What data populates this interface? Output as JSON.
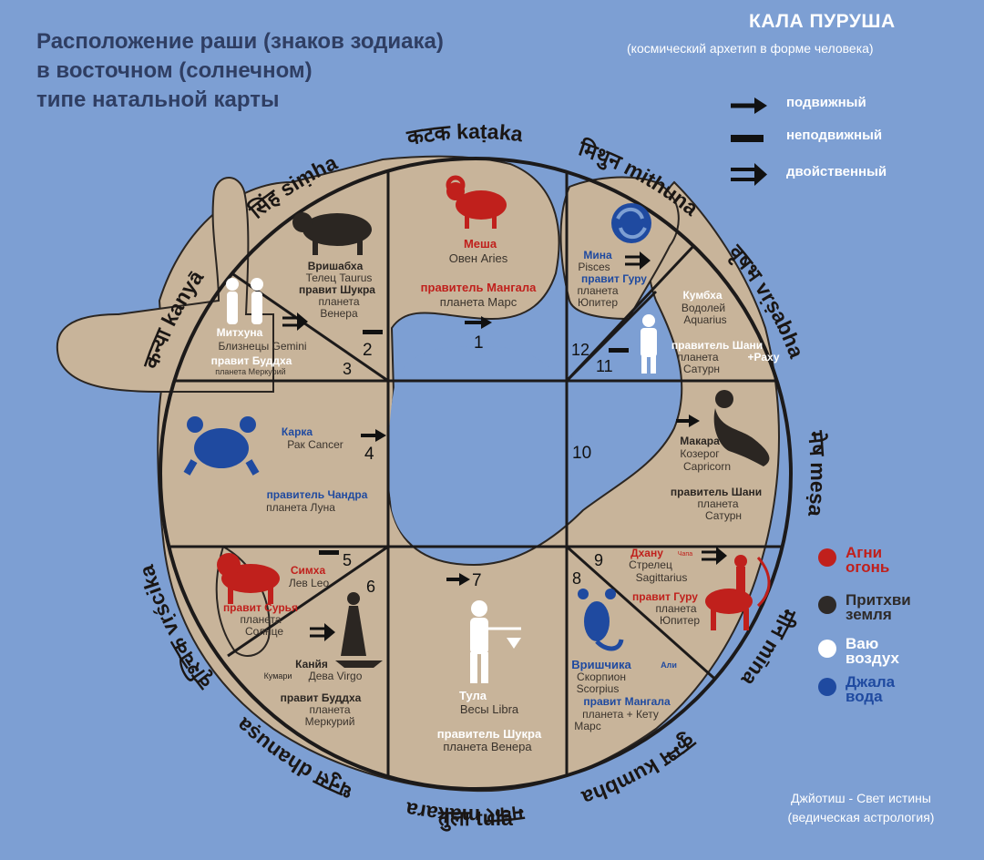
{
  "title": {
    "line1": "Расположение раши (знаков зодиака)",
    "line2": "в восточном (солнечном)",
    "line3": "типе натальной карты"
  },
  "kala_purusha": {
    "title": "КАЛА ПУРУША",
    "subtitle": "(космический архетип в форме человека)"
  },
  "legend": {
    "movable": "подвижный",
    "fixed": "неподвижный",
    "dual": "двойственный"
  },
  "elements": [
    {
      "line1": "Агни",
      "line2": "огонь",
      "color": "#c0201c"
    },
    {
      "line1": "Притхви",
      "line2": "земля",
      "color": "#2e2a28"
    },
    {
      "line1": "Ваю",
      "line2": "воздух",
      "color": "#ffffff"
    },
    {
      "line1": "Джала",
      "line2": "вода",
      "color": "#1f4aa0"
    }
  ],
  "credit": {
    "line1": "Джйотиш - Свет истины",
    "line2": "(ведическая астрология)"
  },
  "ring_labels": {
    "mesa": "मेष meṣa",
    "vrsabha": "वृषभ vṛṣabha",
    "mithuna": "मिथुन mithuna",
    "kataka": "कटक kaṭaka",
    "simha": "सिंह siṃha",
    "kanya": "कन्या kanyā",
    "tula": "तुला tulā",
    "vrscika": "वृश्चिक vṛścika",
    "dhanusa": "धनुस dhanuṣa",
    "makara": "मकर makara",
    "kumbha": "कुम्भ kumbha",
    "mina": "मीन mīna"
  },
  "houses": {
    "h1": {
      "num": "1",
      "name": "Меша",
      "sub": "Овен  Aries",
      "ruler": "правитель Мангала",
      "planet": "планета Марс"
    },
    "h2": {
      "num": "2",
      "name": "Вришабха",
      "sub1": "Телец Taurus",
      "ruler": "правит Шукра",
      "planet1": "планета",
      "planet2": "Венера"
    },
    "h3": {
      "num": "3",
      "name": "Митхуна",
      "sub": "Близнецы Gemini",
      "ruler": "правит Буддха",
      "planet": "планета Меркурий"
    },
    "h4": {
      "num": "4",
      "name": "Карка",
      "sub": "Рак  Cancer",
      "ruler": "правитель Чандра",
      "planet": "планета Луна"
    },
    "h5": {
      "num": "5",
      "name": "Симха",
      "sub": "Лев Leo",
      "ruler": "правит Сурья",
      "planet1": "планета",
      "planet2": "Солнце"
    },
    "h6": {
      "num": "6",
      "name": "Канйя",
      "sub1": "Кумари",
      "sub2": "Дева Virgo",
      "ruler": "правит Буддха",
      "planet1": "планета",
      "planet2": "Меркурий"
    },
    "h7": {
      "num": "7",
      "name": "Тула",
      "sub": "Весы Libra",
      "ruler": "правитель Шукра",
      "planet": "планета Венера"
    },
    "h8": {
      "num": "8",
      "name": "Вришчика",
      "tag": "Али",
      "sub1": "Скорпион",
      "sub2": "Scorpius",
      "ruler": "правит Мангала",
      "planet1": "планета + Кету",
      "planet2": "Марс"
    },
    "h9": {
      "num": "9",
      "name": "Дхану",
      "tag": "Чапа",
      "sub1": "Стрелец",
      "sub2": "Sagittarius",
      "ruler": "правит Гуру",
      "planet1": "планета",
      "planet2": "Юпитер"
    },
    "h10": {
      "num": "10",
      "name": "Макара",
      "sub1": "Козерог",
      "sub2": "Capricorn",
      "ruler": "правитель Шани",
      "planet1": "планета",
      "planet2": "Сатурн"
    },
    "h11": {
      "num": "11",
      "name": "Кумбха",
      "sub1": "Водолей",
      "sub2": "Aquarius",
      "ruler": "правитель Шани",
      "ruler2": "+Раху",
      "planet1": "планета",
      "planet2": "Сатурн"
    },
    "h12": {
      "num": "12",
      "name": "Мина",
      "sub": "Pisces",
      "ruler": "правит Гуру",
      "planet1": "планета",
      "planet2": "Юпитер"
    }
  }
}
